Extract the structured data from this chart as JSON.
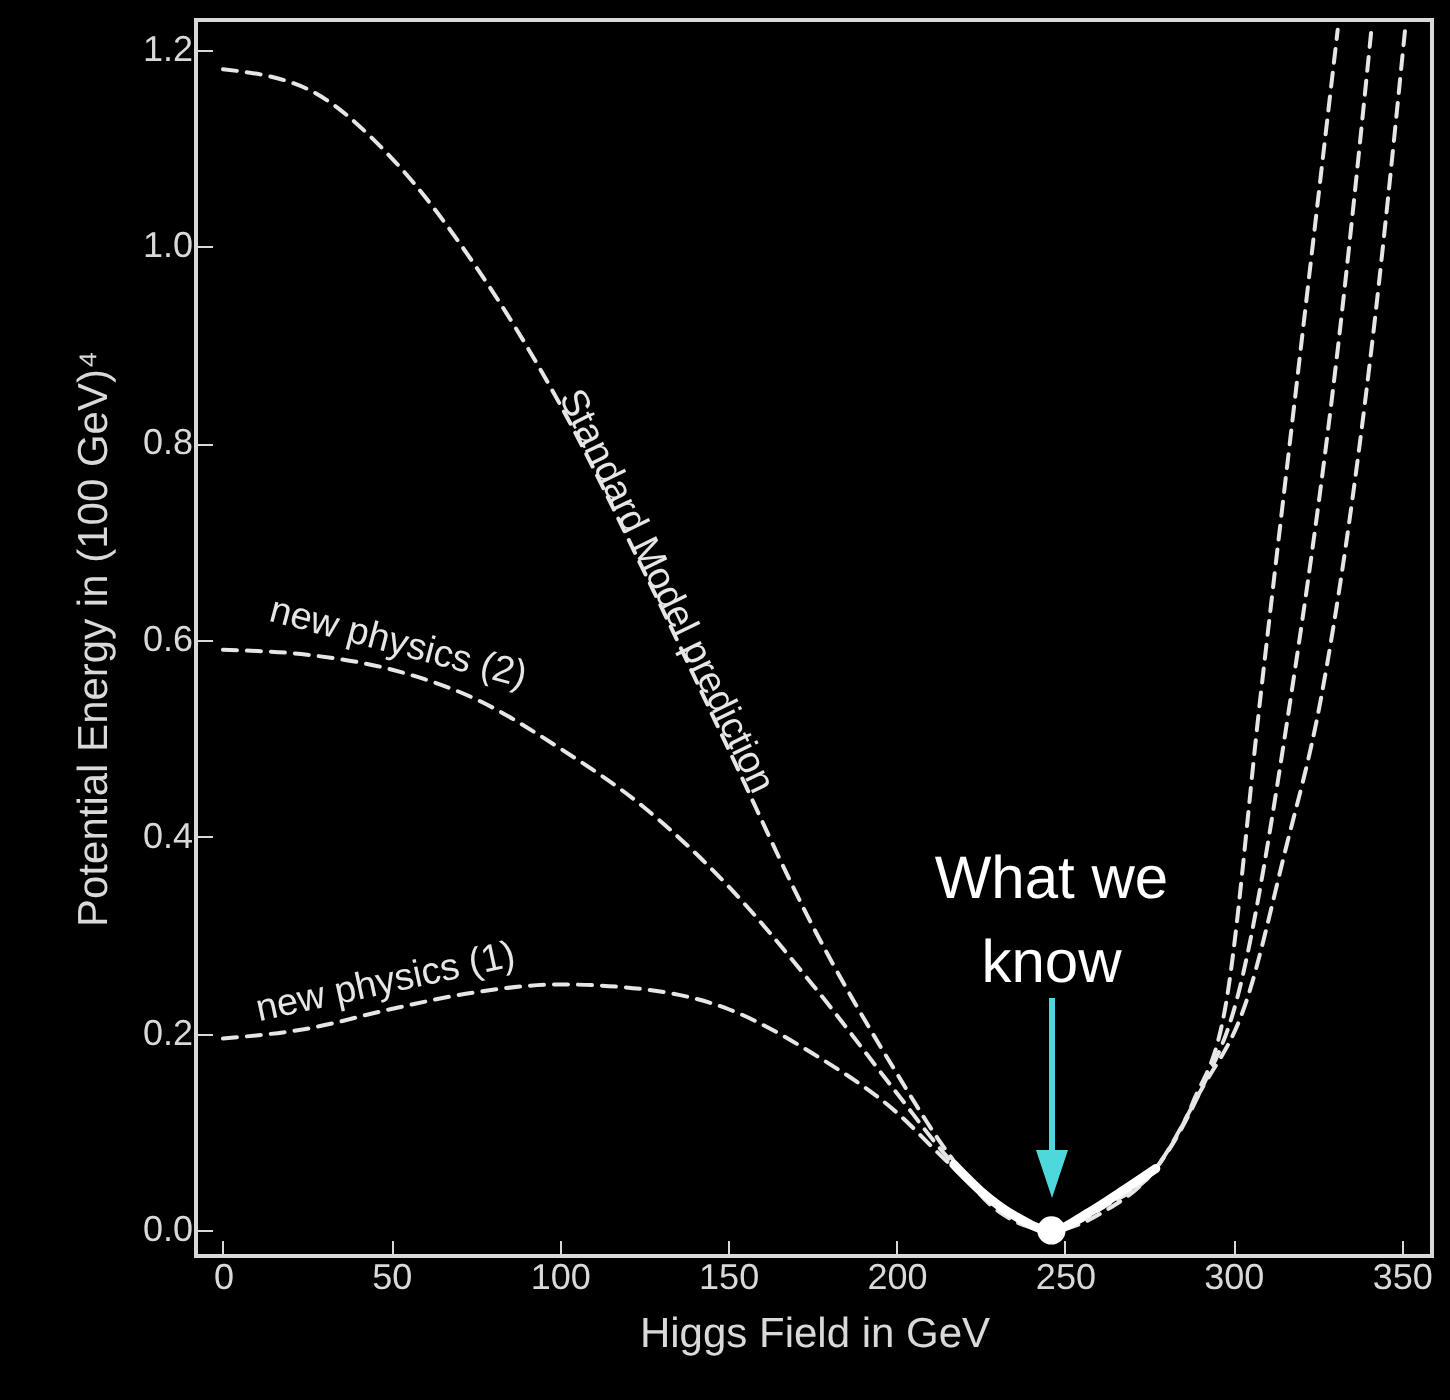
{
  "chart_data": {
    "type": "line",
    "xlabel": "Higgs Field in GeV",
    "ylabel": "Potential Energy in (100 GeV)⁴",
    "xlim": [
      -8,
      359
    ],
    "ylim": [
      -0.026,
      1.23
    ],
    "xticks": [
      0,
      50,
      100,
      150,
      200,
      250,
      300,
      350
    ],
    "yticks": [
      {
        "value": 0,
        "label": "0.0"
      },
      0.2,
      0.4,
      0.6,
      0.8,
      {
        "value": 1,
        "label": "1.0"
      },
      1.2
    ],
    "series": [
      {
        "name": "Standard Model prediction",
        "color": "#e6e6e6",
        "line_style": "dashed",
        "x": [
          0,
          25,
          50,
          75,
          100,
          125,
          150,
          175,
          200,
          215,
          230,
          246,
          262,
          277,
          290,
          304,
          315,
          326,
          341,
          351
        ],
        "values": [
          1.18,
          1.16,
          1.09,
          0.98,
          0.84,
          0.67,
          0.49,
          0.31,
          0.16,
          0.08,
          0.02,
          0,
          0.02,
          0.063,
          0.14,
          0.234,
          0.38,
          0.54,
          0.895,
          1.22
        ]
      },
      {
        "name": "new physics (2)",
        "color": "#e6e6e6",
        "line_style": "dashed",
        "x": [
          0,
          25,
          50,
          75,
          100,
          125,
          150,
          175,
          200,
          215,
          230,
          246,
          262,
          277,
          290,
          301,
          317,
          331,
          341
        ],
        "values": [
          0.59,
          0.585,
          0.57,
          0.54,
          0.49,
          0.43,
          0.35,
          0.25,
          0.14,
          0.075,
          0.025,
          0,
          0.025,
          0.063,
          0.14,
          0.234,
          0.54,
          0.895,
          1.22
        ]
      },
      {
        "name": "new physics (1)",
        "color": "#e6e6e6",
        "line_style": "dashed",
        "x": [
          0,
          25,
          50,
          75,
          100,
          125,
          150,
          175,
          200,
          215,
          230,
          246,
          262,
          277,
          288,
          298,
          308,
          320,
          331
        ],
        "values": [
          0.195,
          0.205,
          0.225,
          0.242,
          0.25,
          0.245,
          0.225,
          0.18,
          0.12,
          0.07,
          0.025,
          0,
          0.025,
          0.063,
          0.13,
          0.234,
          0.54,
          0.895,
          1.22
        ]
      },
      {
        "color": "#ffffff",
        "line_style": "solid",
        "x": [
          217,
          225,
          235,
          246,
          257,
          267,
          277
        ],
        "values": [
          0.067,
          0.04,
          0.015,
          0,
          0.018,
          0.04,
          0.063
        ]
      },
      {
        "type": "scatter",
        "color": "#ffffff",
        "marker": "circle",
        "x": [
          246
        ],
        "values": [
          0
        ]
      }
    ],
    "annotations": [
      "What we know"
    ]
  }
}
